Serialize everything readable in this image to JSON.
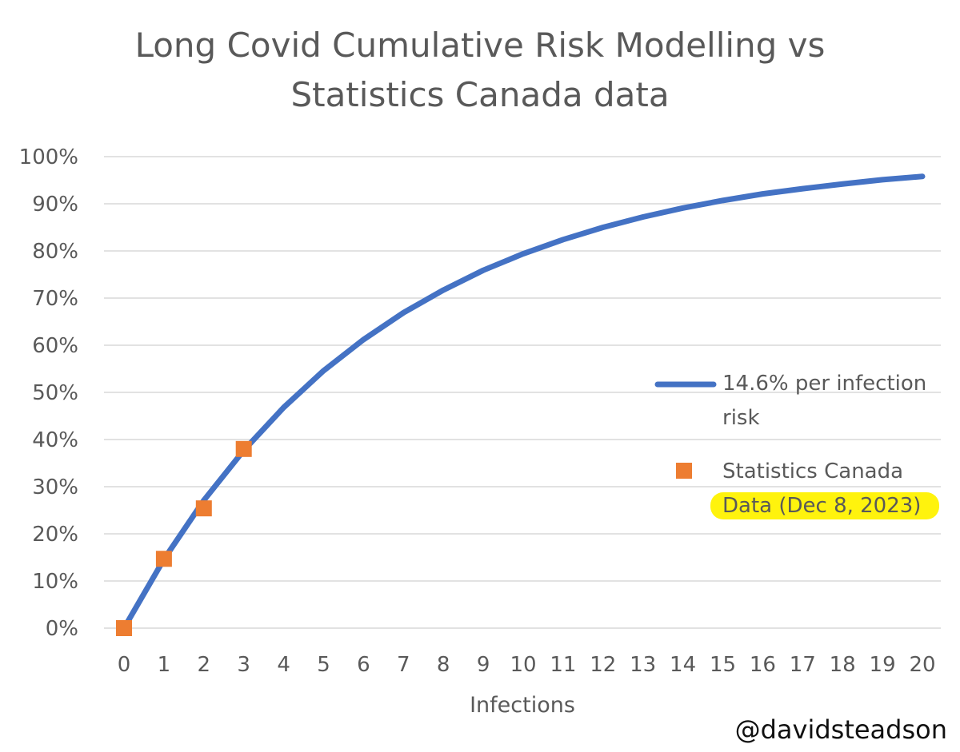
{
  "title_lines": [
    "Long Covid Cumulative Risk Modelling vs",
    "Statistics Canada data"
  ],
  "attribution": "@davidsteadson",
  "colors": {
    "line": "#4472C4",
    "marker": "#ED7D31",
    "grid": "#D9D9D9",
    "text": "#595959",
    "highlight": "#FFF200"
  },
  "chart_data": {
    "type": "line",
    "title": "Long Covid Cumulative Risk Modelling vs Statistics Canada data",
    "xlabel": "Infections",
    "ylabel": "",
    "x": [
      0,
      1,
      2,
      3,
      4,
      5,
      6,
      7,
      8,
      9,
      10,
      11,
      12,
      13,
      14,
      15,
      16,
      17,
      18,
      19,
      20
    ],
    "xticks": [
      "0",
      "1",
      "2",
      "3",
      "4",
      "5",
      "6",
      "7",
      "8",
      "9",
      "10",
      "11",
      "12",
      "13",
      "14",
      "15",
      "16",
      "17",
      "18",
      "19",
      "20"
    ],
    "ylim": [
      0,
      100
    ],
    "yticks": [
      "0%",
      "10%",
      "20%",
      "30%",
      "40%",
      "50%",
      "60%",
      "70%",
      "80%",
      "90%",
      "100%"
    ],
    "grid": true,
    "legend_position": "right",
    "series": [
      {
        "name": "14.6% per infection risk",
        "name_lines": [
          "14.6% per infection",
          "risk"
        ],
        "type": "line",
        "values": [
          0,
          14.6,
          27.1,
          37.7,
          46.8,
          54.6,
          61.2,
          66.9,
          71.7,
          75.9,
          79.4,
          82.4,
          85.0,
          87.2,
          89.1,
          90.7,
          92.1,
          93.2,
          94.2,
          95.1,
          95.8
        ]
      },
      {
        "name": "Statistics Canada Data (Dec 8, 2023)",
        "name_lines": [
          "Statistics Canada",
          "Data (Dec 8, 2023)"
        ],
        "type": "scatter",
        "x": [
          0,
          1,
          2,
          3
        ],
        "values": [
          0,
          14.7,
          25.4,
          38.0
        ]
      }
    ]
  }
}
